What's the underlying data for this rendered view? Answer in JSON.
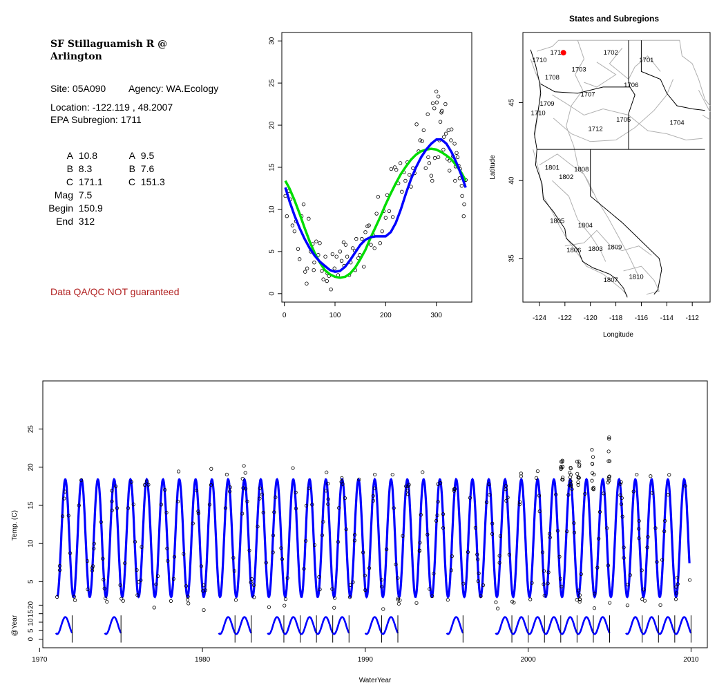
{
  "site": {
    "title_line1": "SF Stillaguamish R @",
    "title_line2": "Arlington",
    "site_label": "Site: 05A090",
    "agency_label": "Agency: WA.Ecology",
    "location_label": "Location: -122.119 , 48.2007",
    "subregion_label": "EPA Subregion: 1711"
  },
  "params": {
    "left": [
      {
        "label": "A",
        "value": "10.8"
      },
      {
        "label": "B",
        "value": "8.3"
      },
      {
        "label": "C",
        "value": "171.1"
      },
      {
        "label": "Mag",
        "value": "7.5"
      },
      {
        "label": "Begin",
        "value": "150.9"
      },
      {
        "label": "End",
        "value": "312"
      }
    ],
    "right": [
      {
        "label": "A",
        "value": "9.5"
      },
      {
        "label": "B",
        "value": "7.6"
      },
      {
        "label": "C",
        "value": "151.3"
      }
    ]
  },
  "qa_notice": "Data QA/QC NOT guaranteed",
  "colors": {
    "blue": "#0000ff",
    "green": "#00dd00",
    "red": "#ff0000",
    "black": "#000000",
    "map_gray": "#b0b0b0"
  },
  "chart_data": [
    {
      "type": "scatter",
      "title": "",
      "xlabel": "",
      "ylabel": "",
      "xlim": [
        -5,
        370
      ],
      "ylim": [
        -1,
        31
      ],
      "xticks": [
        0,
        100,
        200,
        300
      ],
      "yticks": [
        0,
        5,
        10,
        15,
        20,
        25,
        30
      ],
      "points": [
        [
          2,
          11.6
        ],
        [
          5,
          9.2
        ],
        [
          9,
          12.2
        ],
        [
          12,
          11.2
        ],
        [
          16,
          8.1
        ],
        [
          20,
          7.4
        ],
        [
          23,
          8.6
        ],
        [
          27,
          5.3
        ],
        [
          30,
          4.1
        ],
        [
          34,
          9.2
        ],
        [
          38,
          10.6
        ],
        [
          41,
          2.6
        ],
        [
          45,
          3.0
        ],
        [
          48,
          8.9
        ],
        [
          52,
          5.0
        ],
        [
          56,
          5.9
        ],
        [
          59,
          3.7
        ],
        [
          63,
          6.2
        ],
        [
          67,
          4.6
        ],
        [
          70,
          6.0
        ],
        [
          74,
          2.7
        ],
        [
          77,
          1.7
        ],
        [
          81,
          4.4
        ],
        [
          85,
          2.4
        ],
        [
          88,
          2.1
        ],
        [
          92,
          0.5
        ],
        [
          95,
          4.7
        ],
        [
          99,
          3.0
        ],
        [
          103,
          4.4
        ],
        [
          106,
          2.2
        ],
        [
          110,
          5.0
        ],
        [
          113,
          3.9
        ],
        [
          117,
          6.1
        ],
        [
          121,
          5.8
        ],
        [
          124,
          4.4
        ],
        [
          128,
          2.2
        ],
        [
          131,
          3.7
        ],
        [
          135,
          5.4
        ],
        [
          139,
          5.1
        ],
        [
          142,
          6.5
        ],
        [
          146,
          4.2
        ],
        [
          149,
          4.6
        ],
        [
          153,
          6.5
        ],
        [
          157,
          3.2
        ],
        [
          160,
          7.3
        ],
        [
          164,
          8.0
        ],
        [
          167,
          8.1
        ],
        [
          171,
          5.8
        ],
        [
          175,
          7.0
        ],
        [
          178,
          5.4
        ],
        [
          182,
          9.5
        ],
        [
          185,
          11.5
        ],
        [
          189,
          6.0
        ],
        [
          193,
          7.4
        ],
        [
          196,
          9.8
        ],
        [
          200,
          9.0
        ],
        [
          203,
          11.7
        ],
        [
          207,
          9.8
        ],
        [
          211,
          14.8
        ],
        [
          214,
          9.1
        ],
        [
          218,
          15.0
        ],
        [
          221,
          14.7
        ],
        [
          225,
          13.1
        ],
        [
          229,
          15.5
        ],
        [
          232,
          12.1
        ],
        [
          236,
          14.4
        ],
        [
          239,
          13.4
        ],
        [
          243,
          15.6
        ],
        [
          247,
          14.1
        ],
        [
          250,
          12.7
        ],
        [
          254,
          14.9
        ],
        [
          257,
          14.3
        ],
        [
          261,
          20.1
        ],
        [
          265,
          16.9
        ],
        [
          268,
          18.2
        ],
        [
          272,
          18.1
        ],
        [
          275,
          19.4
        ],
        [
          279,
          14.9
        ],
        [
          283,
          21.3
        ],
        [
          286,
          15.5
        ],
        [
          290,
          14.0
        ],
        [
          293,
          22.6
        ],
        [
          297,
          16.1
        ],
        [
          301,
          22.7
        ],
        [
          304,
          16.2
        ],
        [
          308,
          20.4
        ],
        [
          311,
          21.7
        ],
        [
          315,
          18.6
        ],
        [
          319,
          19.0
        ],
        [
          322,
          16.0
        ],
        [
          326,
          15.8
        ],
        [
          329,
          18.2
        ],
        [
          333,
          16.3
        ],
        [
          337,
          13.4
        ],
        [
          340,
          16.7
        ],
        [
          344,
          15.2
        ],
        [
          347,
          14.8
        ],
        [
          351,
          11.6
        ],
        [
          355,
          10.6
        ],
        [
          358,
          13.5
        ],
        [
          300,
          24.0
        ],
        [
          304,
          23.4
        ],
        [
          296,
          22.0
        ],
        [
          310,
          21.5
        ],
        [
          318,
          22.5
        ],
        [
          324,
          19.4
        ],
        [
          330,
          19.5
        ],
        [
          336,
          17.8
        ],
        [
          342,
          16.2
        ],
        [
          350,
          12.8
        ],
        [
          284,
          16.2
        ],
        [
          292,
          13.4
        ],
        [
          306,
          18.2
        ],
        [
          314,
          17.1
        ],
        [
          326,
          14.6
        ],
        [
          338,
          15.1
        ],
        [
          346,
          13.7
        ],
        [
          354,
          9.2
        ],
        [
          44,
          1.2
        ],
        [
          58,
          2.8
        ],
        [
          84,
          1.5
        ],
        [
          118,
          3.3
        ],
        [
          140,
          2.8
        ]
      ],
      "curves": [
        {
          "color": "green",
          "points": [
            [
              2,
              13.4
            ],
            [
              10,
              12.5
            ],
            [
              20,
              11.1
            ],
            [
              30,
              9.5
            ],
            [
              40,
              7.8
            ],
            [
              50,
              6.2
            ],
            [
              60,
              4.8
            ],
            [
              70,
              3.7
            ],
            [
              80,
              2.8
            ],
            [
              90,
              2.3
            ],
            [
              100,
              2.0
            ],
            [
              110,
              1.9
            ],
            [
              120,
              2.0
            ],
            [
              130,
              2.4
            ],
            [
              140,
              3.1
            ],
            [
              150,
              4.1
            ],
            [
              160,
              5.2
            ],
            [
              170,
              6.6
            ],
            [
              180,
              7.9
            ],
            [
              190,
              9.2
            ],
            [
              200,
              10.6
            ],
            [
              210,
              11.9
            ],
            [
              220,
              13.1
            ],
            [
              230,
              14.2
            ],
            [
              240,
              15.1
            ],
            [
              250,
              15.9
            ],
            [
              260,
              16.5
            ],
            [
              270,
              16.9
            ],
            [
              280,
              17.1
            ],
            [
              290,
              17.2
            ],
            [
              300,
              17.1
            ],
            [
              310,
              16.8
            ],
            [
              320,
              16.4
            ],
            [
              330,
              15.9
            ],
            [
              340,
              15.2
            ],
            [
              350,
              14.3
            ],
            [
              358,
              13.4
            ]
          ]
        },
        {
          "color": "blue",
          "points": [
            [
              2,
              12.6
            ],
            [
              10,
              11.0
            ],
            [
              20,
              9.3
            ],
            [
              30,
              7.8
            ],
            [
              40,
              6.5
            ],
            [
              50,
              5.4
            ],
            [
              60,
              4.5
            ],
            [
              70,
              3.8
            ],
            [
              80,
              3.3
            ],
            [
              90,
              2.8
            ],
            [
              100,
              2.6
            ],
            [
              110,
              2.7
            ],
            [
              120,
              3.2
            ],
            [
              130,
              4.0
            ],
            [
              140,
              4.9
            ],
            [
              150,
              5.8
            ],
            [
              160,
              6.4
            ],
            [
              170,
              6.7
            ],
            [
              180,
              6.8
            ],
            [
              190,
              6.8
            ],
            [
              200,
              6.8
            ],
            [
              210,
              7.3
            ],
            [
              220,
              8.4
            ],
            [
              230,
              10.0
            ],
            [
              240,
              11.9
            ],
            [
              250,
              13.6
            ],
            [
              260,
              15.0
            ],
            [
              270,
              16.2
            ],
            [
              280,
              17.1
            ],
            [
              290,
              17.8
            ],
            [
              300,
              18.3
            ],
            [
              310,
              18.3
            ],
            [
              320,
              17.8
            ],
            [
              330,
              16.8
            ],
            [
              340,
              15.5
            ],
            [
              350,
              14.0
            ],
            [
              358,
              12.6
            ]
          ]
        }
      ]
    },
    {
      "type": "map",
      "title": "States and Subregions",
      "xlabel": "Longitude",
      "ylabel": "Latitude",
      "xlim": [
        -125.3,
        -110.6
      ],
      "ylim": [
        32.2,
        49.5
      ],
      "xticks": [
        -124,
        -122,
        -120,
        -118,
        -116,
        -114,
        -112
      ],
      "yticks": [
        35,
        40,
        45
      ],
      "subregion_labels": [
        {
          "text": "1702",
          "lon": -118.4,
          "lat": 48.2
        },
        {
          "text": "1701",
          "lon": -115.6,
          "lat": 47.7
        },
        {
          "text": "1711",
          "lon": -122.6,
          "lat": 48.2
        },
        {
          "text": "1710",
          "lon": -124.0,
          "lat": 47.7
        },
        {
          "text": "1703",
          "lon": -120.9,
          "lat": 47.1
        },
        {
          "text": "1708",
          "lon": -123.0,
          "lat": 46.6
        },
        {
          "text": "1706",
          "lon": -116.8,
          "lat": 46.1
        },
        {
          "text": "1707",
          "lon": -120.2,
          "lat": 45.5
        },
        {
          "text": "1709",
          "lon": -123.4,
          "lat": 44.9
        },
        {
          "text": "1710",
          "lon": -124.1,
          "lat": 44.3
        },
        {
          "text": "1705",
          "lon": -117.4,
          "lat": 43.9
        },
        {
          "text": "1704",
          "lon": -113.2,
          "lat": 43.7
        },
        {
          "text": "1712",
          "lon": -119.6,
          "lat": 43.3
        },
        {
          "text": "1801",
          "lon": -123.0,
          "lat": 40.8
        },
        {
          "text": "1808",
          "lon": -120.7,
          "lat": 40.7
        },
        {
          "text": "1802",
          "lon": -121.9,
          "lat": 40.2
        },
        {
          "text": "1805",
          "lon": -122.6,
          "lat": 37.4
        },
        {
          "text": "1804",
          "lon": -120.4,
          "lat": 37.1
        },
        {
          "text": "1809",
          "lon": -118.1,
          "lat": 35.7
        },
        {
          "text": "1806",
          "lon": -121.3,
          "lat": 35.5
        },
        {
          "text": "1803",
          "lon": -119.6,
          "lat": 35.6
        },
        {
          "text": "1810",
          "lon": -116.4,
          "lat": 33.8
        },
        {
          "text": "1807",
          "lon": -118.4,
          "lat": 33.6
        }
      ],
      "site_marker": {
        "lon": -122.119,
        "lat": 48.2007,
        "color": "red"
      }
    },
    {
      "type": "line",
      "title": "",
      "xlabel": "WaterYear",
      "ylabel_main": "Temp. (C)",
      "ylabel_sub": "@Year",
      "xlim": [
        1970.2,
        2011.0
      ],
      "ylim_main": [
        1.5,
        30.5
      ],
      "ylim_sub": [
        -3,
        23
      ],
      "xticks": [
        1970,
        1980,
        1990,
        2000,
        2010
      ],
      "yticks_main": [
        5,
        10,
        15,
        20,
        25
      ],
      "yticks_sub": [
        0,
        5,
        10,
        15,
        20
      ],
      "series_main": {
        "start_year": 1971.1,
        "end_year": 2009.9,
        "min": 3.0,
        "max": 18.4,
        "color": "blue"
      },
      "sub_years": [
        1971,
        1974,
        1981,
        1982,
        1984,
        1985,
        1986,
        1987,
        1988,
        1990,
        1991,
        1995,
        1998,
        1999,
        2000,
        2001,
        2002,
        2003,
        2004,
        2006,
        2007,
        2008,
        2009
      ]
    }
  ]
}
